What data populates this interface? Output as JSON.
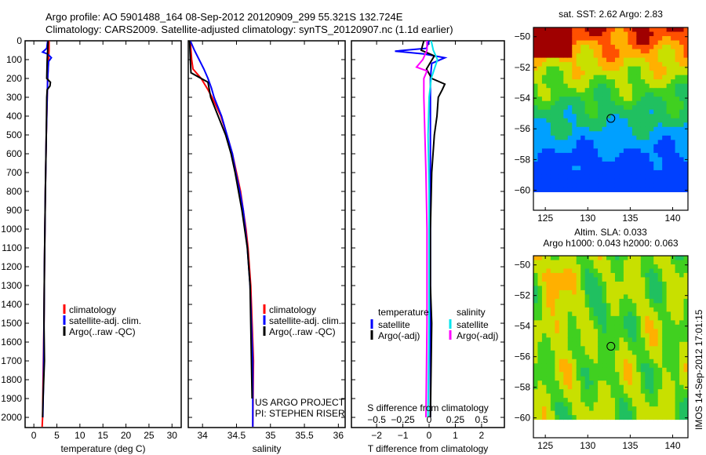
{
  "header": {
    "line1": "Argo profile: AO 5901488_164 08-Sep-2012 20120909_299 55.321S 132.724E",
    "line2": "Climatology: CARS2009. Satellite-adjusted climatology: synTS_20120907.nc (1.1d earlier)"
  },
  "credit": {
    "line1": "US ARGO PROJECT",
    "line2": "PI: STEPHEN RISER"
  },
  "timestamp": "IMOS 14-Sep-2012 17:01:15",
  "colors": {
    "red": "#ff0000",
    "blue": "#0000ff",
    "black": "#000000",
    "cyan": "#00e5ee",
    "magenta": "#ff00ff"
  },
  "chart_data": [
    {
      "type": "line",
      "name": "temperature",
      "xlabel": "temperature (deg C)",
      "ylabel": "",
      "xlim": [
        -1.9,
        32
      ],
      "ylim": [
        2054,
        0
      ],
      "xticks": [
        0,
        5,
        10,
        15,
        20,
        25,
        30
      ],
      "yticks": [
        0,
        100,
        200,
        300,
        400,
        500,
        600,
        700,
        800,
        900,
        1000,
        1100,
        1200,
        1300,
        1400,
        1500,
        1600,
        1700,
        1800,
        1900,
        2000
      ],
      "legend": [
        "climatology",
        "satellite-adj. clim.",
        "Argo(..raw -QC)"
      ],
      "series": [
        {
          "name": "climatology",
          "color": "#ff0000",
          "depth": [
            0,
            50,
            100,
            200,
            300,
            500,
            800,
            1000,
            1200,
            1500,
            1800,
            2000,
            2050
          ],
          "values": [
            3.3,
            3.3,
            3.2,
            3.0,
            2.9,
            2.7,
            2.5,
            2.4,
            2.3,
            2.2,
            2.0,
            1.9,
            1.8
          ]
        },
        {
          "name": "satellite-adj. clim.",
          "color": "#0000ff",
          "depth": [
            0,
            40,
            60,
            70,
            90,
            110,
            200,
            300,
            500,
            800,
            1000,
            1200,
            1500,
            1800,
            2000
          ],
          "values": [
            3.0,
            2.8,
            1.9,
            3.0,
            3.8,
            3.2,
            3.0,
            2.9,
            2.7,
            2.5,
            2.4,
            2.3,
            2.2,
            2.1,
            1.95
          ]
        },
        {
          "name": "Argo(..raw -QC)",
          "color": "#000000",
          "depth": [
            0,
            50,
            100,
            200,
            220,
            240,
            260,
            300,
            500,
            800,
            1000,
            1200,
            1500,
            1700,
            1900,
            2000
          ],
          "values": [
            3.1,
            3.0,
            2.9,
            2.8,
            3.6,
            3.5,
            2.9,
            2.8,
            2.7,
            2.5,
            2.4,
            2.3,
            2.2,
            2.3,
            2.0,
            1.9
          ]
        }
      ]
    },
    {
      "type": "line",
      "name": "salinity",
      "xlabel": "salinity",
      "xlim": [
        33.79,
        36.1
      ],
      "ylim": [
        2054,
        0
      ],
      "xticks": [
        34,
        34.5,
        35,
        35.5,
        36
      ],
      "legend": [
        "climatology",
        "satellite-adj. clim.",
        "Argo(..raw -QC)"
      ],
      "series": [
        {
          "name": "climatology",
          "color": "#ff0000",
          "depth": [
            0,
            100,
            150,
            200,
            260,
            300,
            400,
            500,
            600,
            700,
            800,
            900,
            1000,
            1100,
            1300,
            1500,
            1700,
            2050
          ],
          "values": [
            33.82,
            33.84,
            33.86,
            33.98,
            34.08,
            34.14,
            34.27,
            34.36,
            34.44,
            34.5,
            34.56,
            34.6,
            34.64,
            34.67,
            34.71,
            34.73,
            34.75,
            34.74
          ]
        },
        {
          "name": "satellite-adj. clim.",
          "color": "#0000ff",
          "depth": [
            0,
            50,
            100,
            150,
            200,
            250,
            300,
            400,
            500,
            600,
            700,
            800,
            900,
            1000,
            1100,
            1300,
            1500,
            1700,
            2050
          ],
          "values": [
            33.82,
            33.88,
            33.95,
            34.02,
            34.08,
            34.13,
            34.17,
            34.28,
            34.36,
            34.44,
            34.49,
            34.55,
            34.6,
            34.63,
            34.66,
            34.7,
            34.72,
            34.74,
            34.74
          ]
        },
        {
          "name": "Argo(..raw -QC)",
          "color": "#000000",
          "depth": [
            0,
            100,
            170,
            200,
            220,
            300,
            400,
            500,
            600,
            700,
            800,
            900,
            1000,
            1100,
            1300,
            1500,
            1700,
            1900
          ],
          "values": [
            33.81,
            33.82,
            33.83,
            33.98,
            34.08,
            34.12,
            34.23,
            34.34,
            34.42,
            34.48,
            34.53,
            34.58,
            34.62,
            34.66,
            34.7,
            34.71,
            34.72,
            34.73
          ]
        }
      ]
    },
    {
      "type": "line",
      "name": "differences",
      "xlabel": "T difference from climatology",
      "x2label": "S difference from climatology",
      "xlim": [
        -2.96,
        2.87
      ],
      "ylim": [
        2054,
        0
      ],
      "xticks": [
        -2,
        -1,
        0,
        1,
        2
      ],
      "x2ticks": [
        -0.5,
        -0.25,
        0,
        0.25,
        0.5
      ],
      "legend_titles": [
        "temperature",
        "salinity"
      ],
      "legend": [
        "satellite",
        "Argo(-adj)",
        "satellite",
        "Argo(-adj)"
      ],
      "series": [
        {
          "name": "temperature satellite",
          "color": "#0000ff",
          "depth": [
            0,
            40,
            55,
            70,
            90,
            120,
            200,
            300,
            500,
            800,
            1000,
            1500,
            2000
          ],
          "values": [
            0,
            -0.1,
            -1.3,
            -0.2,
            0.6,
            0.1,
            0.05,
            0.05,
            0.05,
            0.05,
            0.05,
            0.05,
            0.05
          ]
        },
        {
          "name": "temperature Argo(-adj)",
          "color": "#000000",
          "depth": [
            0,
            50,
            80,
            150,
            200,
            230,
            260,
            300,
            400,
            500,
            700,
            1000,
            1300,
            1500,
            2000
          ],
          "values": [
            -0.2,
            -0.3,
            0.2,
            -0.1,
            0.1,
            0.6,
            0.5,
            0.35,
            0.3,
            0.2,
            0.1,
            0.05,
            0.05,
            0.1,
            0.05
          ]
        },
        {
          "name": "salinity satellite",
          "color": "#00e5ee",
          "depth": [
            0,
            50,
            100,
            150,
            200,
            300,
            500,
            800,
            1000,
            1500,
            2000
          ],
          "values": [
            0.02,
            0.04,
            0.08,
            0.05,
            0.02,
            0.0,
            -0.01,
            0.0,
            0.0,
            0.0,
            -0.01
          ]
        },
        {
          "name": "salinity Argo(-adj)",
          "color": "#ff00ff",
          "depth": [
            0,
            50,
            100,
            140,
            160,
            200,
            300,
            500,
            700,
            1000,
            1500,
            2000
          ],
          "values": [
            -0.02,
            -0.02,
            -0.06,
            -0.12,
            -0.02,
            -0.05,
            -0.05,
            -0.04,
            -0.03,
            -0.02,
            -0.02,
            -0.03
          ]
        }
      ]
    },
    {
      "type": "heatmap",
      "name": "sst-map",
      "title": "sat. SST: 2.62 Argo: 2.83",
      "xlim": [
        123.6,
        141.8
      ],
      "ylim": [
        -61.3,
        -49.4
      ],
      "xticks": [
        125,
        130,
        135,
        140
      ],
      "yticks": [
        -50,
        -52,
        -54,
        -56,
        -58,
        -60
      ],
      "marker": {
        "lon": 132.724,
        "lat": -55.321
      }
    },
    {
      "type": "heatmap",
      "name": "sla-map",
      "title": "Altim. SLA: 0.033",
      "subtitle": "Argo h1000: 0.043 h2000: 0.063",
      "xlim": [
        123.6,
        141.8
      ],
      "ylim": [
        -61.3,
        -49.4
      ],
      "xticks": [
        125,
        130,
        135,
        140
      ],
      "yticks": [
        -50,
        -52,
        -54,
        -56,
        -58,
        -60
      ],
      "marker": {
        "lon": 132.724,
        "lat": -55.321
      }
    }
  ]
}
